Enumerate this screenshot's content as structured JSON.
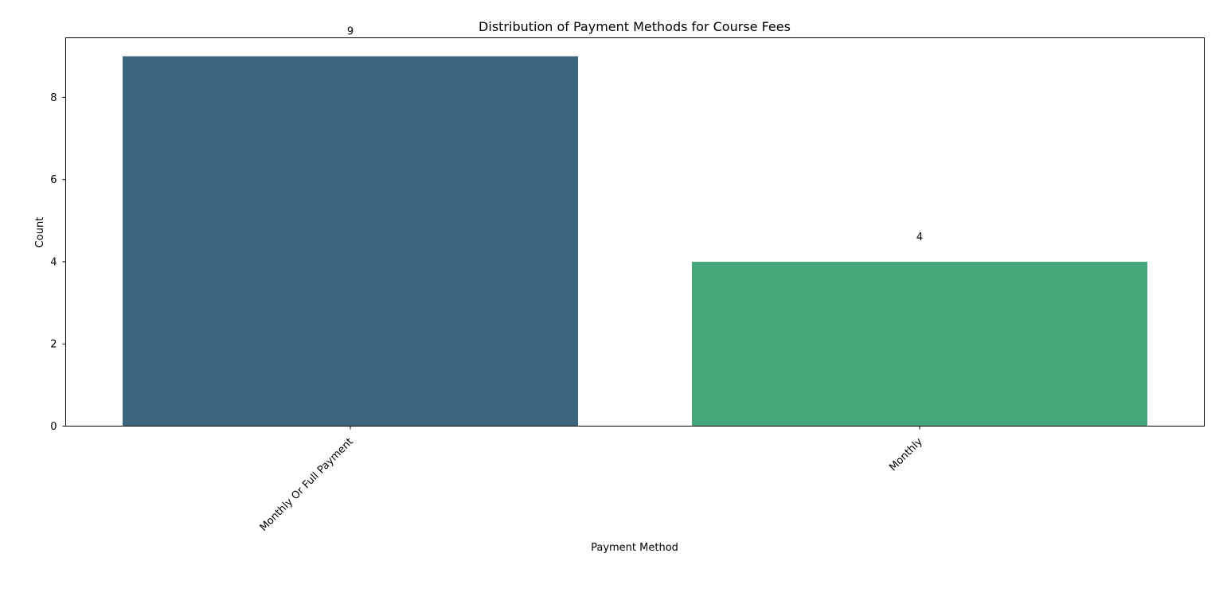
{
  "chart_data": {
    "type": "bar",
    "title": "Distribution of Payment Methods for Course Fees",
    "xlabel": "Payment Method",
    "ylabel": "Count",
    "categories": [
      "Monthly Or Full Payment",
      "Monthly"
    ],
    "values": [
      9,
      4
    ],
    "data_labels": [
      "9",
      "4"
    ],
    "colors": [
      "#3e6680",
      "#46a878"
    ],
    "ylim": [
      0,
      9.45
    ],
    "yticks": [
      0,
      2,
      4,
      6,
      8
    ],
    "grid": false,
    "legend": "none"
  }
}
